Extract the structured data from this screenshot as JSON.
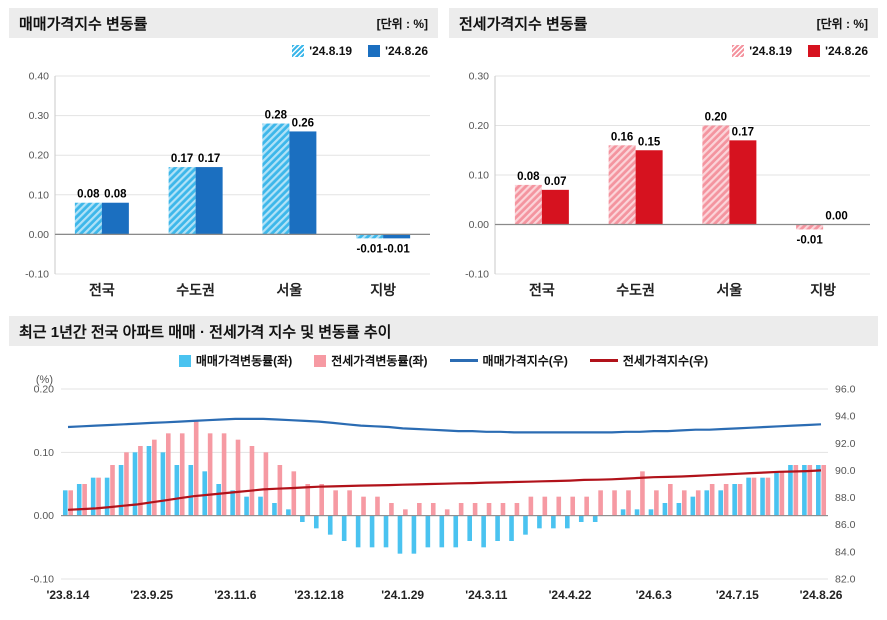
{
  "chart_data": [
    {
      "type": "bar",
      "title": "매매가격지수 변동률",
      "unit_label": "[단위 : %]",
      "categories": [
        "전국",
        "수도권",
        "서울",
        "지방"
      ],
      "series": [
        {
          "name": "'24.8.19",
          "values": [
            0.08,
            0.17,
            0.28,
            -0.01
          ],
          "color": "#3db7ea",
          "hatch": true
        },
        {
          "name": "'24.8.26",
          "values": [
            0.08,
            0.17,
            0.26,
            -0.01
          ],
          "color": "#1b6fc0",
          "hatch": false
        }
      ],
      "ylim": [
        -0.1,
        0.4
      ],
      "ytick_step": 0.1,
      "grid": true,
      "legend_position": "top-right"
    },
    {
      "type": "bar",
      "title": "전세가격지수 변동률",
      "unit_label": "[단위 : %]",
      "categories": [
        "전국",
        "수도권",
        "서울",
        "지방"
      ],
      "series": [
        {
          "name": "'24.8.19",
          "values": [
            0.08,
            0.16,
            0.2,
            -0.01
          ],
          "color": "#f4949f",
          "hatch": true
        },
        {
          "name": "'24.8.26",
          "values": [
            0.07,
            0.15,
            0.17,
            0.0
          ],
          "color": "#d6121f",
          "hatch": false
        }
      ],
      "ylim": [
        -0.1,
        0.3
      ],
      "ytick_step": 0.1,
      "grid": true,
      "legend_position": "top-right"
    },
    {
      "type": "combo",
      "title": "최근 1년간 전국 아파트 매매 · 전세가격 지수 및 변동률 추이",
      "left_axis_label": "(%)",
      "left_ylim": [
        -0.1,
        0.2
      ],
      "left_ytick_step": 0.1,
      "right_ylim": [
        82.0,
        96.0
      ],
      "right_ytick_step": 2.0,
      "x_tick_labels": [
        "'23.8.14",
        "'23.9.25",
        "'23.11.6",
        "'23.12.18",
        "'24.1.29",
        "'24.3.11",
        "'24.4.22",
        "'24.6.3",
        "'24.7.15",
        "'24.8.26"
      ],
      "x_tick_every": 6,
      "grid": true,
      "legend_position": "top-center",
      "bar_series": [
        {
          "name": "매매가격변동률(좌)",
          "axis": "left",
          "color": "#4ac3f0",
          "values": [
            0.04,
            0.05,
            0.06,
            0.06,
            0.08,
            0.1,
            0.11,
            0.1,
            0.08,
            0.08,
            0.07,
            0.05,
            0.04,
            0.03,
            0.03,
            0.02,
            0.01,
            -0.01,
            -0.02,
            -0.03,
            -0.04,
            -0.05,
            -0.05,
            -0.05,
            -0.06,
            -0.06,
            -0.05,
            -0.05,
            -0.05,
            -0.04,
            -0.05,
            -0.04,
            -0.04,
            -0.03,
            -0.02,
            -0.02,
            -0.02,
            -0.01,
            -0.01,
            0.0,
            0.01,
            0.01,
            0.01,
            0.02,
            0.02,
            0.03,
            0.04,
            0.04,
            0.05,
            0.06,
            0.06,
            0.07,
            0.08,
            0.08,
            0.08
          ]
        },
        {
          "name": "전세가격변동률(좌)",
          "axis": "left",
          "color": "#f69aa3",
          "values": [
            0.04,
            0.05,
            0.06,
            0.08,
            0.1,
            0.11,
            0.12,
            0.13,
            0.13,
            0.15,
            0.13,
            0.13,
            0.12,
            0.11,
            0.1,
            0.08,
            0.07,
            0.05,
            0.05,
            0.04,
            0.04,
            0.03,
            0.03,
            0.02,
            0.01,
            0.02,
            0.02,
            0.01,
            0.02,
            0.02,
            0.02,
            0.02,
            0.02,
            0.03,
            0.03,
            0.03,
            0.03,
            0.03,
            0.04,
            0.04,
            0.04,
            0.07,
            0.04,
            0.05,
            0.04,
            0.04,
            0.05,
            0.05,
            0.05,
            0.06,
            0.06,
            0.07,
            0.08,
            0.08,
            0.08
          ]
        }
      ],
      "line_series": [
        {
          "name": "매매가격지수(우)",
          "axis": "right",
          "color": "#2b6cb3",
          "values": [
            93.2,
            93.25,
            93.3,
            93.35,
            93.4,
            93.45,
            93.5,
            93.55,
            93.6,
            93.65,
            93.7,
            93.75,
            93.8,
            93.8,
            93.8,
            93.75,
            93.7,
            93.65,
            93.6,
            93.5,
            93.4,
            93.3,
            93.25,
            93.2,
            93.1,
            93.05,
            93.0,
            92.95,
            92.9,
            92.9,
            92.85,
            92.85,
            92.8,
            92.8,
            92.8,
            92.8,
            92.8,
            92.8,
            92.8,
            92.8,
            92.85,
            92.85,
            92.9,
            92.9,
            92.95,
            93.0,
            93.0,
            93.05,
            93.1,
            93.15,
            93.2,
            93.25,
            93.3,
            93.35,
            93.4
          ]
        },
        {
          "name": "전세가격지수(우)",
          "axis": "right",
          "color": "#b1121a",
          "values": [
            87.1,
            87.15,
            87.2,
            87.3,
            87.4,
            87.5,
            87.65,
            87.8,
            87.95,
            88.1,
            88.2,
            88.3,
            88.4,
            88.5,
            88.6,
            88.65,
            88.7,
            88.75,
            88.8,
            88.82,
            88.85,
            88.88,
            88.9,
            88.92,
            88.95,
            88.97,
            89.0,
            89.02,
            89.05,
            89.07,
            89.1,
            89.12,
            89.15,
            89.17,
            89.2,
            89.22,
            89.25,
            89.3,
            89.32,
            89.35,
            89.4,
            89.45,
            89.5,
            89.52,
            89.55,
            89.6,
            89.65,
            89.7,
            89.75,
            89.8,
            89.85,
            89.9,
            89.92,
            89.95,
            90.0
          ]
        }
      ]
    }
  ],
  "colors": {
    "header_bg": "#ececec",
    "grid_line": "#e3e3e3",
    "zero_line": "#8a8a8a",
    "axis_text": "#555555",
    "category_text": "#222222"
  }
}
